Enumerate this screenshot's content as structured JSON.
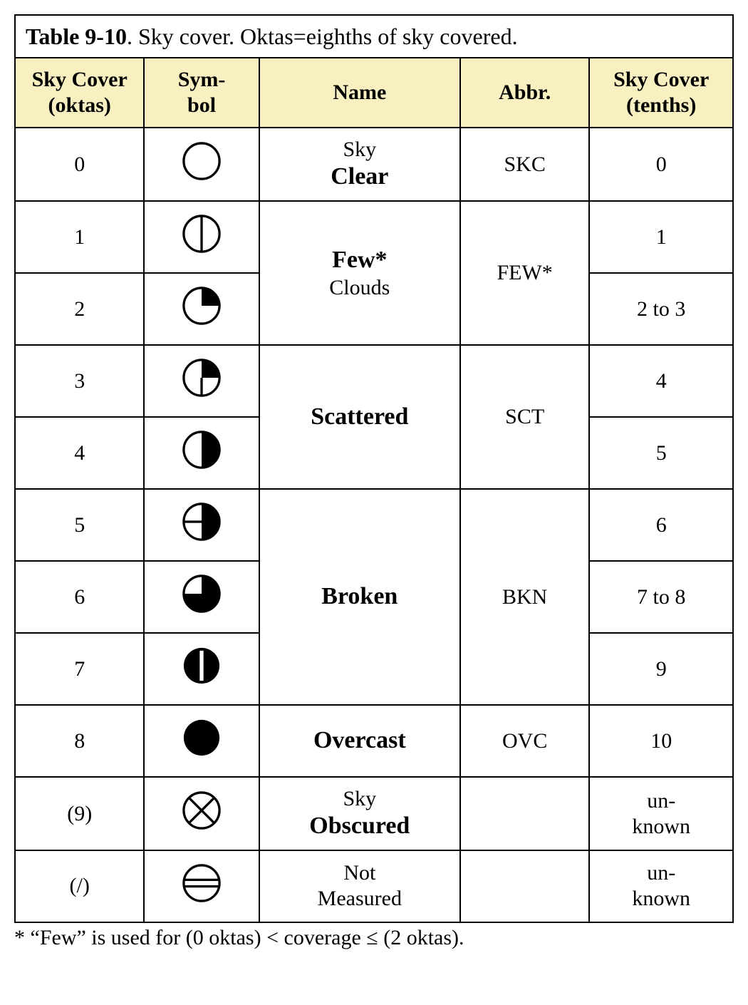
{
  "caption_bold": "Table 9-10",
  "caption_rest": ". Sky cover. Oktas=eighths of sky covered.",
  "columns": {
    "oktas": "Sky Cover (oktas)",
    "symbol": "Sym-bol",
    "name": "Name",
    "abbr": "Abbr.",
    "tenths": "Sky Cover (tenths)"
  },
  "col_widths": [
    "18%",
    "16%",
    "28%",
    "18%",
    "20%"
  ],
  "header_bg": "#f8f0c0",
  "border_color": "#000000",
  "stroke_width": 4,
  "rows": [
    {
      "oktas": "0",
      "tenths": "0",
      "name_pre": "Sky",
      "name_main": "Clear",
      "abbr": "SKC",
      "span": 1
    },
    {
      "oktas": "1",
      "tenths": "1",
      "name_pre": "",
      "name_main": "Few*",
      "name_post": "Clouds",
      "abbr": "FEW*",
      "span": 2
    },
    {
      "oktas": "2",
      "tenths": "2 to 3"
    },
    {
      "oktas": "3",
      "tenths": "4",
      "name_main": "Scattered",
      "abbr": "SCT",
      "span": 2
    },
    {
      "oktas": "4",
      "tenths": "5"
    },
    {
      "oktas": "5",
      "tenths": "6",
      "name_main": "Broken",
      "abbr": "BKN",
      "span": 3
    },
    {
      "oktas": "6",
      "tenths": "7 to 8"
    },
    {
      "oktas": "7",
      "tenths": "9"
    },
    {
      "oktas": "8",
      "tenths": "10",
      "name_main": "Overcast",
      "abbr": "OVC",
      "span": 1
    },
    {
      "oktas": "(9)",
      "tenths": "un-known",
      "name_pre": "Sky",
      "name_main": "Obscured",
      "abbr": "",
      "span": 1
    },
    {
      "oktas": "(/)",
      "tenths": "un-known",
      "name_pre": "Not",
      "name_post": "Measured",
      "plain": true,
      "abbr": "",
      "span": 1
    }
  ],
  "footnote": "* “Few” is used for (0 oktas) < coverage ≤ (2 oktas)."
}
